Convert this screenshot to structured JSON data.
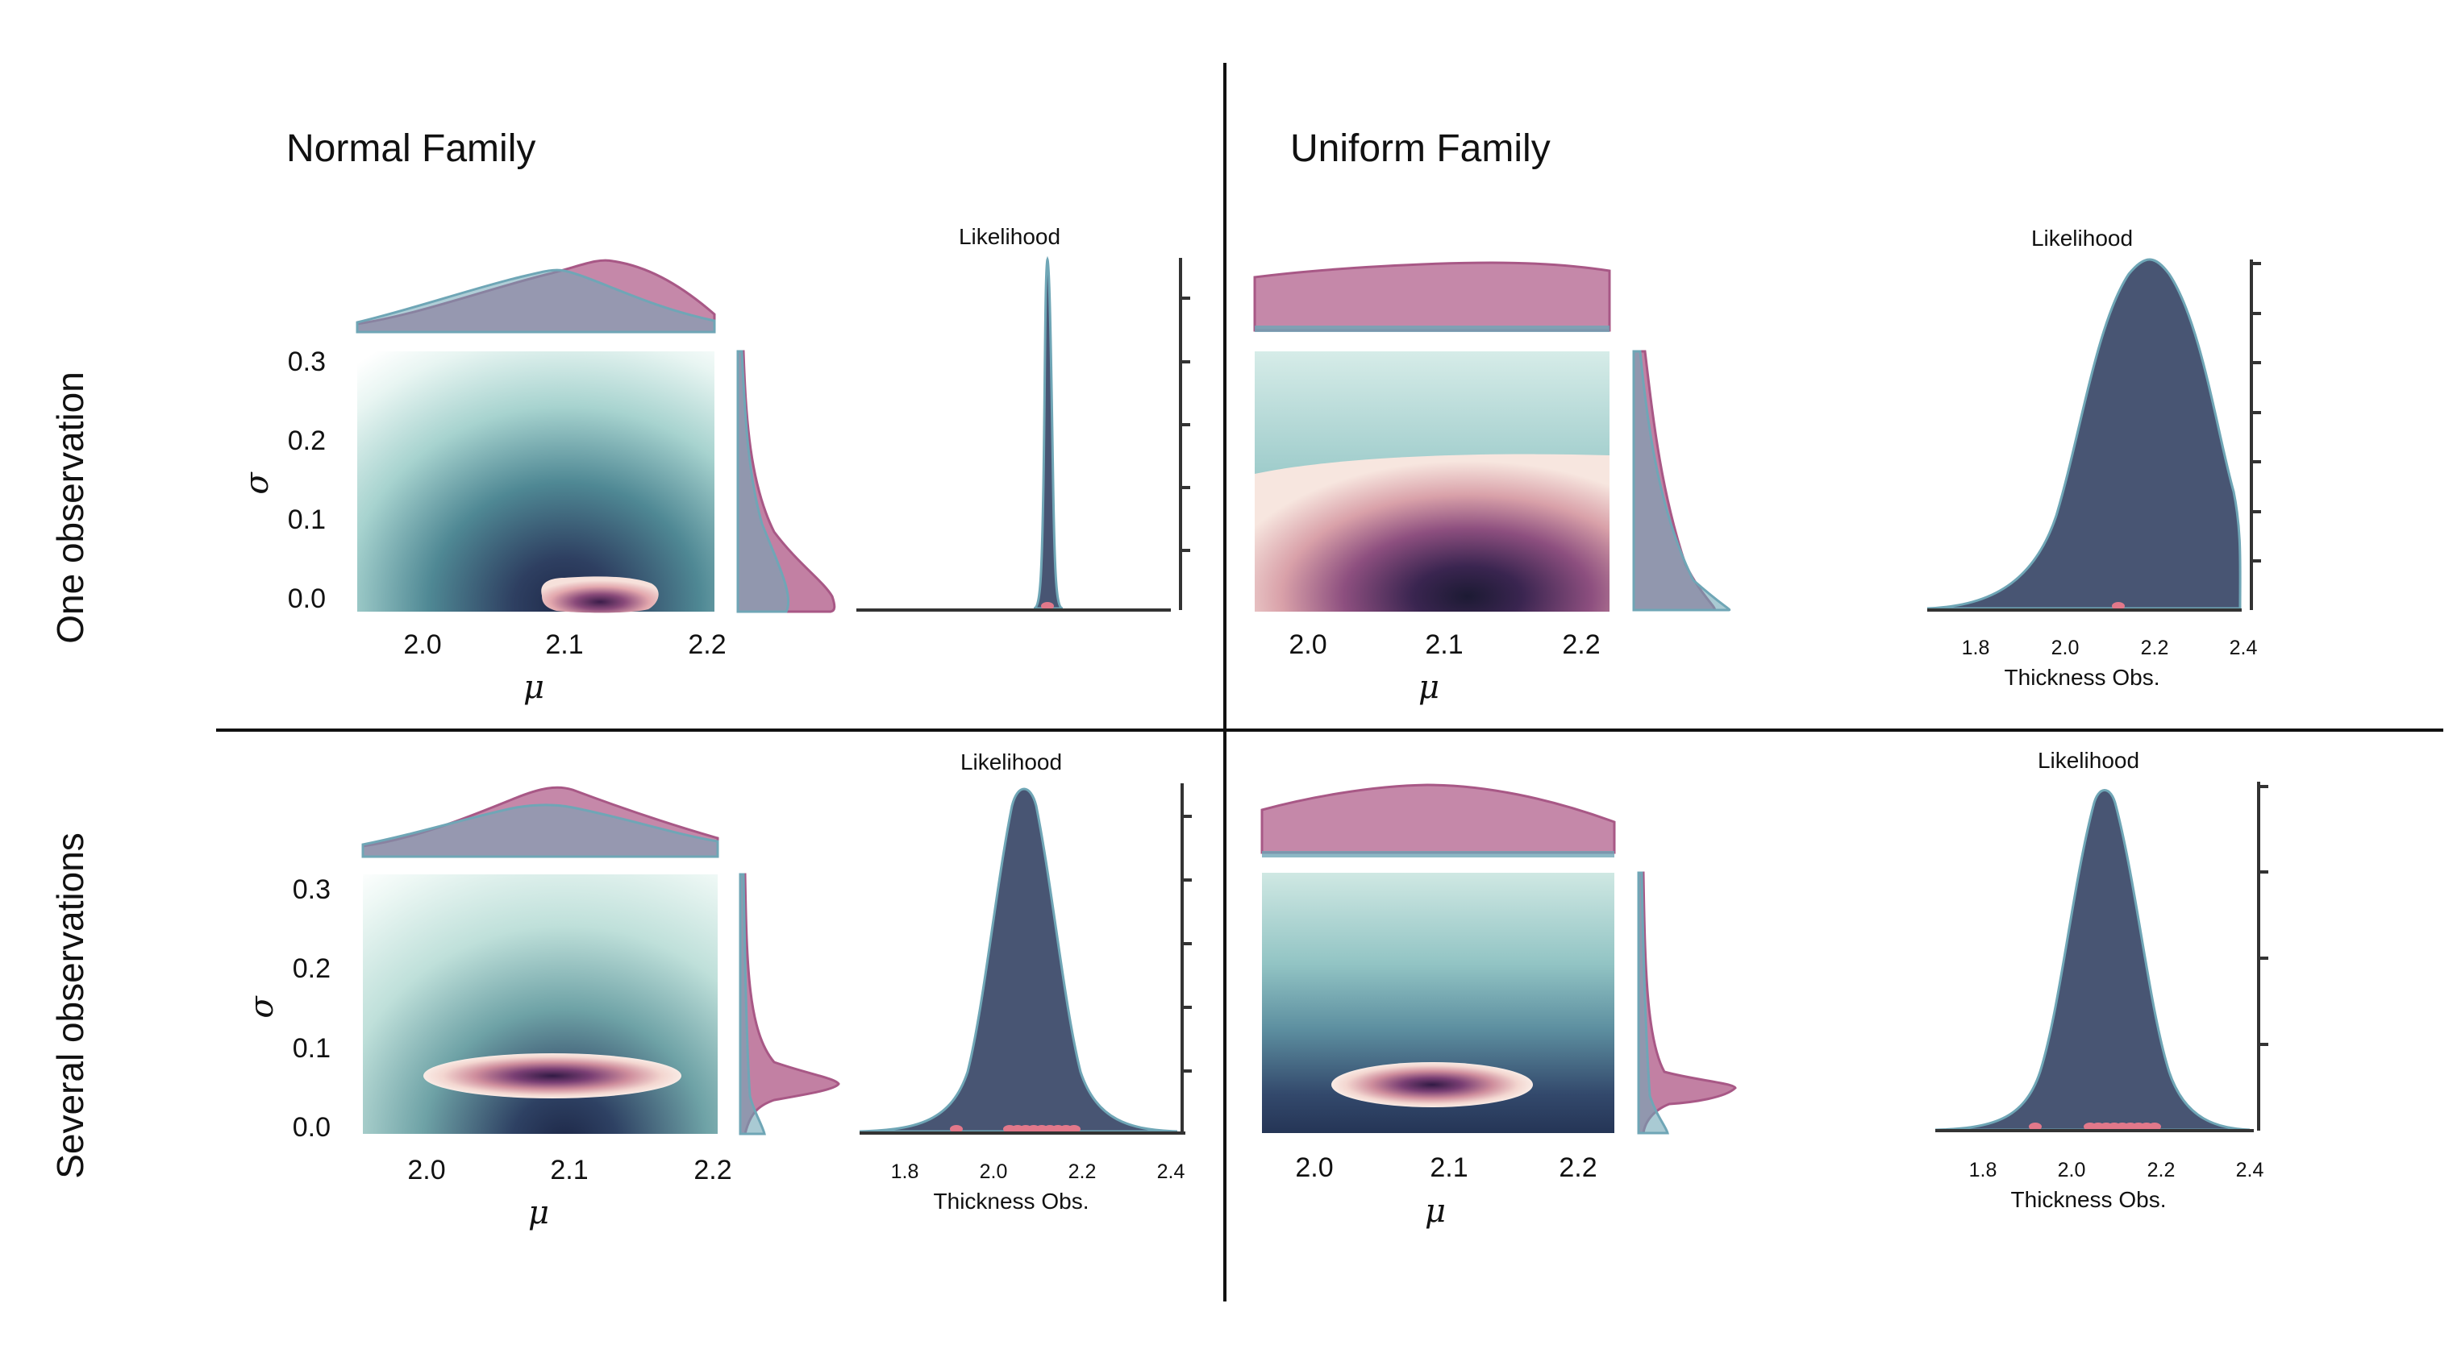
{
  "colors": {
    "prior": "#b76a93",
    "posterior": "#6fa6b6",
    "dark": "#485573",
    "obs": "#e2788a",
    "divider": "#111111"
  },
  "column_titles": [
    "Normal Family",
    "Uniform Family"
  ],
  "row_labels": [
    "One observation",
    "Several observations"
  ],
  "chart_data": [
    {
      "panel": "normal-one",
      "type": "heatmap",
      "xlabel": "μ",
      "ylabel": "σ",
      "xticks": [
        "2.0",
        "2.1",
        "2.2"
      ],
      "yticks": [
        "0.0",
        "0.1",
        "0.2",
        "0.3"
      ],
      "xlim": [
        1.955,
        2.205
      ],
      "ylim": [
        -0.015,
        0.315
      ],
      "posterior_mode": {
        "mu": 2.1,
        "sigma": 0.0
      },
      "marginal_mu": {
        "x": [
          1.955,
          2.0,
          2.05,
          2.08,
          2.1,
          2.12,
          2.15,
          2.2,
          2.205
        ],
        "prior": [
          0.04,
          0.12,
          0.3,
          0.42,
          0.48,
          0.47,
          0.4,
          0.18,
          0.12
        ],
        "posterior": [
          0.06,
          0.2,
          0.36,
          0.45,
          0.46,
          0.42,
          0.33,
          0.16,
          0.11
        ]
      },
      "marginal_sigma": {
        "sigma": [
          0.0,
          0.02,
          0.05,
          0.08,
          0.12,
          0.18,
          0.25,
          0.315
        ],
        "prior": [
          0.86,
          0.95,
          0.72,
          0.42,
          0.22,
          0.1,
          0.04,
          0.02
        ],
        "posterior": [
          0.0,
          0.4,
          0.45,
          0.32,
          0.15,
          0.08,
          0.04,
          0.02
        ]
      }
    },
    {
      "panel": "normal-one-likelihood",
      "type": "area",
      "title": "Likelihood",
      "xlim": [
        1.7,
        2.4
      ],
      "center": 2.12,
      "spread": 0.008,
      "observations": [
        2.12
      ]
    },
    {
      "panel": "uniform-one",
      "type": "heatmap",
      "xlabel": "μ",
      "ylabel": "",
      "xticks": [
        "2.0",
        "2.1",
        "2.2"
      ],
      "yticks": [],
      "xlim": [
        1.955,
        2.215
      ],
      "ylim": [
        -0.015,
        0.315
      ],
      "marginal_mu": {
        "prior": "flat-bulge",
        "posterior": "flat"
      },
      "marginal_sigma": {
        "sigma": [
          0.0,
          0.05,
          0.1,
          0.15,
          0.2,
          0.25,
          0.3
        ],
        "prior": [
          0.9,
          0.7,
          0.52,
          0.36,
          0.22,
          0.12,
          0.06
        ],
        "posterior": [
          1.0,
          0.75,
          0.5,
          0.33,
          0.2,
          0.1,
          0.05
        ]
      }
    },
    {
      "panel": "uniform-one-likelihood",
      "type": "area",
      "title": "Likelihood",
      "xlabel": "Thickness Obs.",
      "xticks": [
        "1.8",
        "2.0",
        "2.2",
        "2.4"
      ],
      "xlim": [
        1.7,
        2.4
      ],
      "center": 2.17,
      "spread": 0.09,
      "observations": [
        2.12
      ]
    },
    {
      "panel": "normal-several",
      "type": "heatmap",
      "xlabel": "μ",
      "ylabel": "σ",
      "xticks": [
        "2.0",
        "2.1",
        "2.2"
      ],
      "yticks": [
        "0.0",
        "0.1",
        "0.2",
        "0.3"
      ],
      "xlim": [
        1.955,
        2.205
      ],
      "ylim": [
        -0.01,
        0.32
      ],
      "posterior_mode": {
        "mu": 2.09,
        "sigma": 0.06
      },
      "marginal_mu": {
        "x": [
          1.955,
          2.0,
          2.05,
          2.08,
          2.09,
          2.12,
          2.15,
          2.2,
          2.205
        ],
        "prior": [
          0.04,
          0.12,
          0.32,
          0.46,
          0.5,
          0.44,
          0.32,
          0.12,
          0.1
        ],
        "posterior": [
          0.06,
          0.2,
          0.36,
          0.4,
          0.4,
          0.36,
          0.27,
          0.12,
          0.1
        ]
      },
      "marginal_sigma": {
        "sigma": [
          0.0,
          0.03,
          0.05,
          0.06,
          0.08,
          0.12,
          0.32
        ],
        "prior": [
          0.05,
          0.3,
          0.75,
          1.0,
          0.55,
          0.1,
          0.02
        ],
        "posterior": [
          0.3,
          0.25,
          0.2,
          0.15,
          0.1,
          0.05,
          0.02
        ]
      }
    },
    {
      "panel": "normal-several-likelihood",
      "type": "area",
      "title": "Likelihood",
      "xlabel": "Thickness Obs.",
      "xticks": [
        "1.8",
        "2.0",
        "2.2",
        "2.4"
      ],
      "xlim": [
        1.7,
        2.4
      ],
      "center": 2.08,
      "spread": 0.075,
      "observations": [
        1.92,
        1.98,
        2.02,
        2.04,
        2.06,
        2.08,
        2.1,
        2.12,
        2.14,
        2.16,
        2.18,
        2.2
      ]
    },
    {
      "panel": "uniform-several",
      "type": "heatmap",
      "xlabel": "μ",
      "ylabel": "",
      "xticks": [
        "2.0",
        "2.1",
        "2.2"
      ],
      "yticks": [],
      "xlim": [
        1.955,
        2.215
      ],
      "ylim": [
        -0.01,
        0.32
      ],
      "posterior_mode": {
        "mu": 2.09,
        "sigma": 0.06
      },
      "marginal_mu": {
        "prior": "bulge",
        "posterior": "flat"
      },
      "marginal_sigma": {
        "sigma": [
          0.0,
          0.03,
          0.05,
          0.06,
          0.08,
          0.12,
          0.32
        ],
        "prior": [
          0.05,
          0.3,
          0.75,
          1.0,
          0.55,
          0.1,
          0.02
        ],
        "posterior": [
          0.3,
          0.25,
          0.2,
          0.15,
          0.1,
          0.05,
          0.02
        ]
      }
    },
    {
      "panel": "uniform-several-likelihood",
      "type": "area",
      "title": "Likelihood",
      "xlabel": "Thickness Obs.",
      "xticks": [
        "1.8",
        "2.0",
        "2.2",
        "2.4"
      ],
      "xlim": [
        1.7,
        2.4
      ],
      "center": 2.09,
      "spread": 0.075,
      "observations": [
        1.92,
        1.98,
        2.02,
        2.04,
        2.06,
        2.08,
        2.1,
        2.12,
        2.14,
        2.16,
        2.18,
        2.2
      ]
    }
  ]
}
